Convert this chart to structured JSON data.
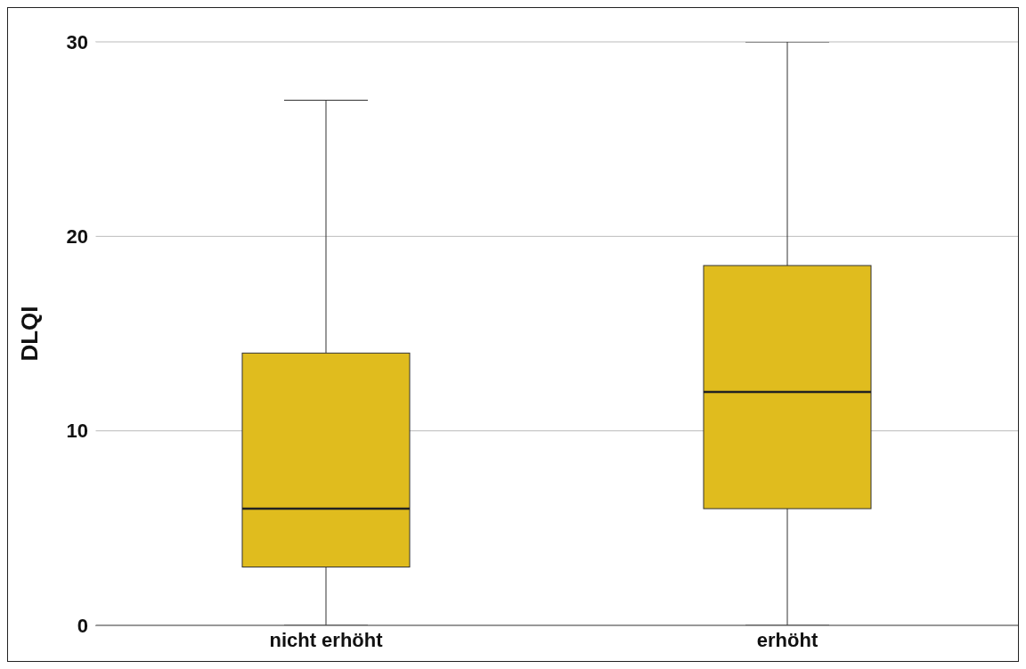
{
  "chart_data": {
    "type": "box",
    "ylabel": "DLQI",
    "categories": [
      "nicht erhöht",
      "erhöht"
    ],
    "boxes": [
      {
        "low": 0,
        "q1": 3,
        "median": 6,
        "q3": 14,
        "high": 27
      },
      {
        "low": 0,
        "q1": 6,
        "median": 12,
        "q3": 18.5,
        "high": 30
      }
    ],
    "color": "#e0bc1e",
    "ylim": [
      0,
      30
    ],
    "yticks": [
      0,
      10,
      20,
      30
    ],
    "grid": "y"
  }
}
